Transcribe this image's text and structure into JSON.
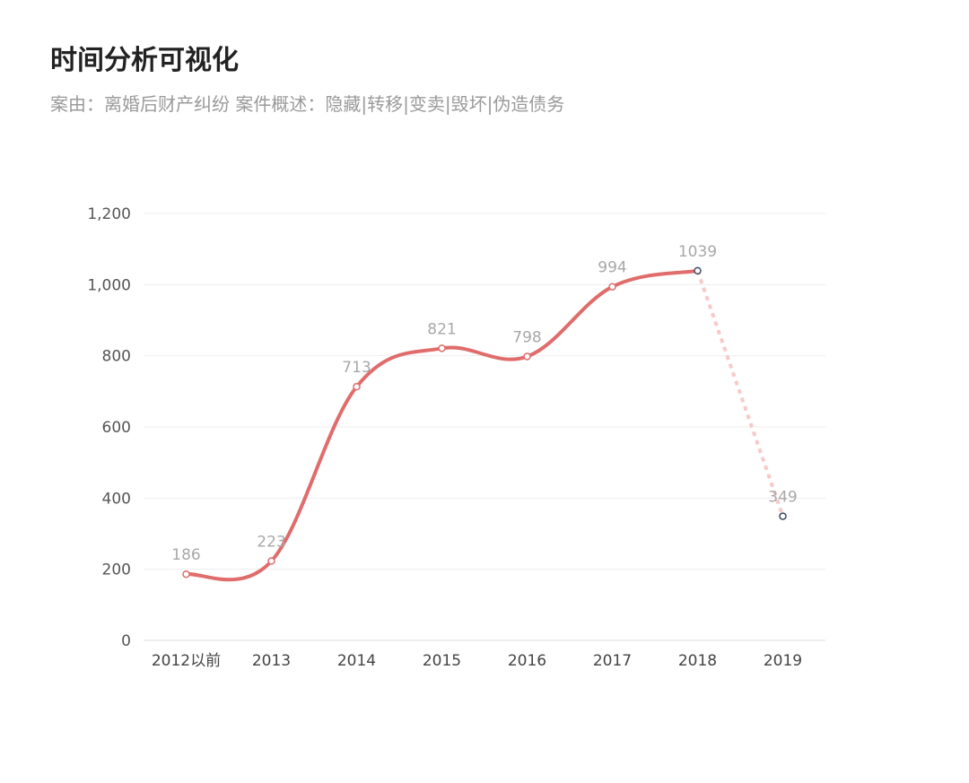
{
  "title": "时间分析可视化",
  "subtitle": "案由：离婚后财产纠纷  案件概述：隐藏|转移|变卖|毁坏|伪造债务",
  "chart_data": {
    "type": "line",
    "categories": [
      "2012以前",
      "2013",
      "2014",
      "2015",
      "2016",
      "2017",
      "2018",
      "2019"
    ],
    "values": [
      186,
      223,
      713,
      821,
      798,
      994,
      1039,
      349
    ],
    "data_labels": [
      "186",
      "223",
      "713",
      "821",
      "798",
      "994",
      "1039",
      "349"
    ],
    "ylim": [
      0,
      1200
    ],
    "yticks": [
      0,
      200,
      400,
      600,
      800,
      1000,
      1200
    ],
    "ytick_labels": [
      "0",
      "200",
      "400",
      "600",
      "800",
      "1,000",
      "1,200"
    ],
    "smooth": true,
    "grid": true,
    "projected_from_index": 6,
    "colors": {
      "line": "#e06c6c",
      "projected_line": "#f7caca",
      "marker_actual": "#e06c6c",
      "marker_projected": "#3d4a66",
      "grid": "#eeeeee"
    }
  }
}
